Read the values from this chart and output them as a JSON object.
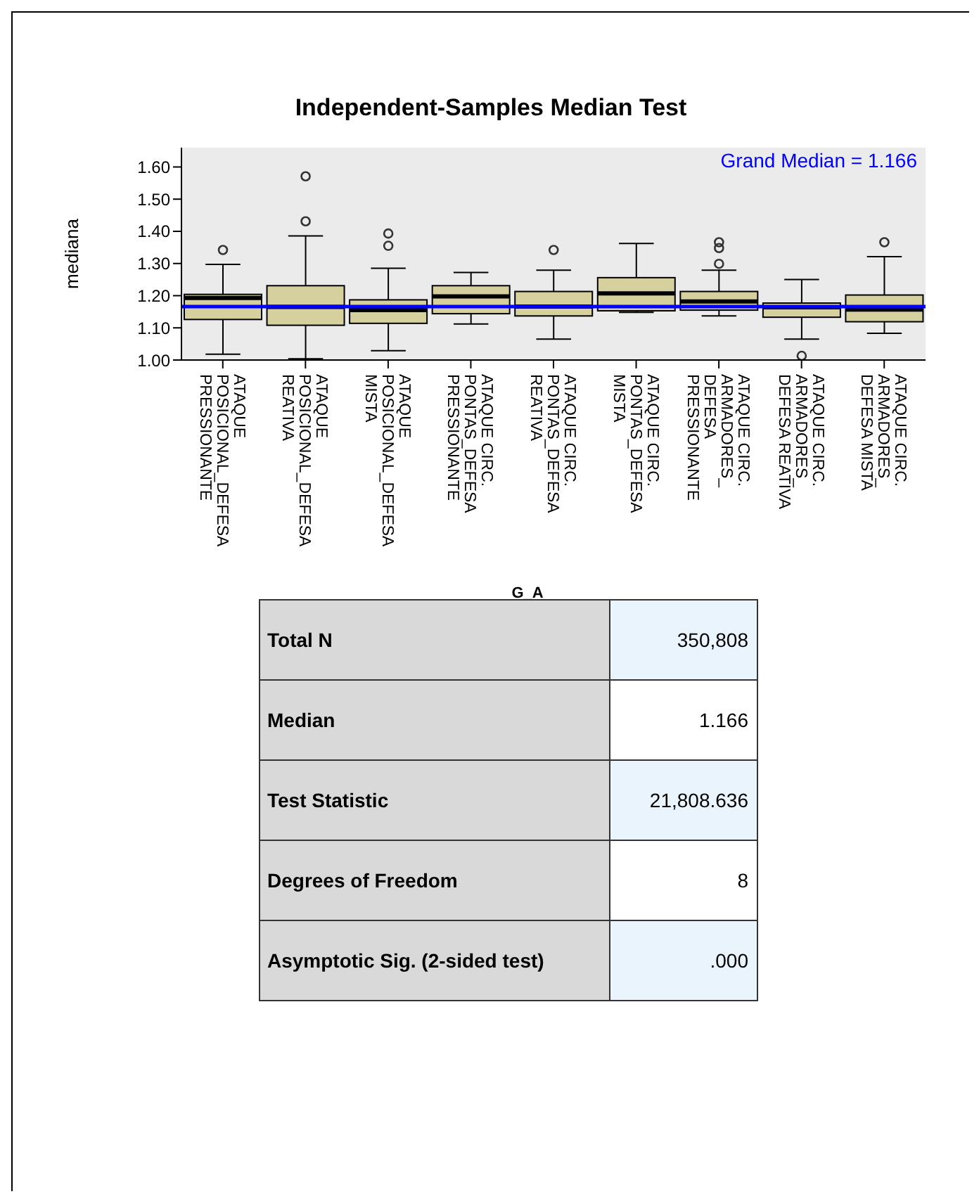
{
  "chart_data": {
    "type": "box",
    "title": "Independent-Samples Median Test",
    "xlabel": "G_A",
    "ylabel": "mediana",
    "categories": [
      "ATAQUE POSICIONAL_DEFESA PRESSIONANTE",
      "ATAQUE POSICIONAL_DEFESA REATIVA",
      "ATAQUE POSICIONAL_DEFESA MISTA",
      "ATAQUE CIRC. PONTAS_DEFESA PRESSIONANTE",
      "ATAQUE CIRC. PONTAS_DEFESA REATIVA",
      "ATAQUE CIRC. PONTAS_DEFESA MISTA",
      "ATAQUE CIRC. ARMADORES_ DEFESA PRESSIONANTE",
      "ATAQUE CIRC. ARMADORES_ DEFESA REATIVA",
      "ATAQUE CIRC. ARMADORES_ DEFESA MISTA"
    ],
    "series": [
      {
        "color": "#d6cf9e",
        "boxes": [
          {
            "low": 1.018,
            "q1": 1.126,
            "median": 1.193,
            "q3": 1.204,
            "high": 1.297,
            "outliers": [
              1.342
            ]
          },
          {
            "low": 1.004,
            "q1": 1.108,
            "median": 1.165,
            "q3": 1.231,
            "high": 1.386,
            "outliers": [
              1.571,
              1.431
            ]
          },
          {
            "low": 1.029,
            "q1": 1.114,
            "median": 1.155,
            "q3": 1.187,
            "high": 1.285,
            "outliers": [
              1.393,
              1.355
            ]
          },
          {
            "low": 1.112,
            "q1": 1.144,
            "median": 1.198,
            "q3": 1.231,
            "high": 1.272
          },
          {
            "low": 1.065,
            "q1": 1.137,
            "median": 1.166,
            "q3": 1.213,
            "high": 1.279,
            "outliers": [
              1.342
            ]
          },
          {
            "low": 1.148,
            "q1": 1.153,
            "median": 1.207,
            "q3": 1.256,
            "high": 1.362
          },
          {
            "low": 1.137,
            "q1": 1.155,
            "median": 1.182,
            "q3": 1.213,
            "high": 1.279,
            "outliers": [
              1.366,
              1.348,
              1.299
            ]
          },
          {
            "low": 1.065,
            "q1": 1.133,
            "median": 1.164,
            "q3": 1.177,
            "high": 1.25,
            "outliers": [
              1.013
            ]
          },
          {
            "low": 1.083,
            "q1": 1.119,
            "median": 1.157,
            "q3": 1.202,
            "high": 1.321,
            "outliers": [
              1.366
            ]
          }
        ]
      }
    ],
    "ylim": [
      1.0,
      1.66
    ],
    "yticks": [
      {
        "value": 1.0,
        "label": "1.00"
      },
      {
        "value": 1.1,
        "label": "1.10"
      },
      {
        "value": 1.2,
        "label": "1.20"
      },
      {
        "value": 1.3,
        "label": "1.30"
      },
      {
        "value": 1.4,
        "label": "1.40"
      },
      {
        "value": 1.5,
        "label": "1.50"
      },
      {
        "value": 1.6,
        "label": "1.60"
      }
    ],
    "grid": false,
    "ref_lines": [
      {
        "axis": "y",
        "value": 1.166,
        "label": "Grand Median = 1.166",
        "color": "#0000ff"
      }
    ],
    "annotations": [
      "Total N",
      "350,808",
      "Median",
      "1.166",
      "Test Statistic",
      "21,808.636",
      "Degrees of Freedom",
      "8",
      "Asymptotic Sig. (2-sided test)",
      ".000"
    ]
  }
}
